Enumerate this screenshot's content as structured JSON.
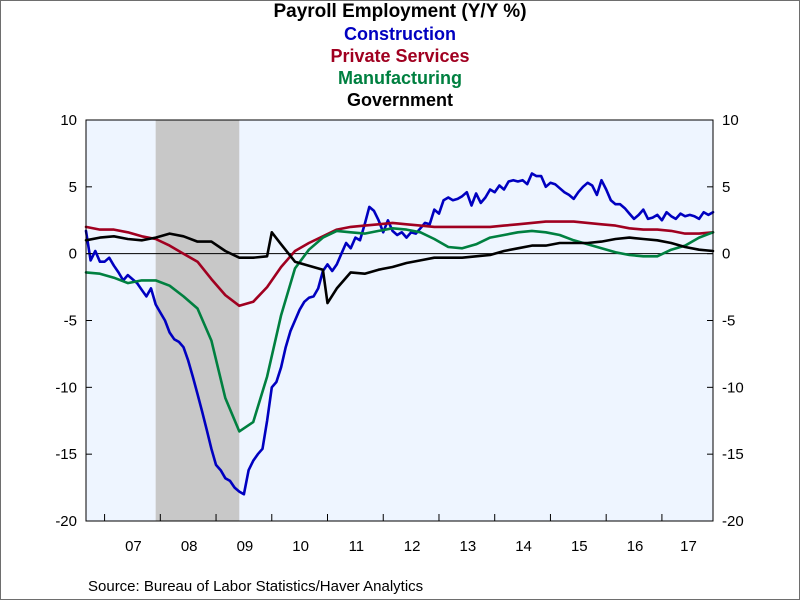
{
  "chart_data": {
    "type": "line",
    "title": "Payroll Employment (Y/Y %)",
    "source": "Source:  Bureau of Labor Statistics/Haver Analytics",
    "ylim": [
      -20,
      10
    ],
    "y_ticks": [
      10,
      5,
      0,
      -5,
      -10,
      -15,
      -20
    ],
    "x_range": [
      "2006-09",
      "2017-12"
    ],
    "x_tick_labels": [
      "07",
      "08",
      "09",
      "10",
      "11",
      "12",
      "13",
      "14",
      "15",
      "16",
      "17"
    ],
    "zero_line": true,
    "recession_shading": {
      "start": "2007-12",
      "end": "2009-06",
      "color": "#c8c8c8"
    },
    "plot_background": "#eef5ff",
    "series": [
      {
        "name": "Construction",
        "color": "#0000c0",
        "points": [
          [
            "2006-09",
            1.7
          ],
          [
            "2006-10",
            -0.5
          ],
          [
            "2006-11",
            0.2
          ],
          [
            "2006-12",
            -0.6
          ],
          [
            "2007-01",
            -0.6
          ],
          [
            "2007-02",
            -0.3
          ],
          [
            "2007-03",
            -0.9
          ],
          [
            "2007-04",
            -1.4
          ],
          [
            "2007-05",
            -2.0
          ],
          [
            "2007-06",
            -1.6
          ],
          [
            "2007-07",
            -1.9
          ],
          [
            "2007-08",
            -2.2
          ],
          [
            "2007-09",
            -2.7
          ],
          [
            "2007-10",
            -3.2
          ],
          [
            "2007-11",
            -2.6
          ],
          [
            "2007-12",
            -3.8
          ],
          [
            "2008-01",
            -4.4
          ],
          [
            "2008-02",
            -5.0
          ],
          [
            "2008-03",
            -5.9
          ],
          [
            "2008-04",
            -6.4
          ],
          [
            "2008-05",
            -6.6
          ],
          [
            "2008-06",
            -7.0
          ],
          [
            "2008-07",
            -8.0
          ],
          [
            "2008-08",
            -9.2
          ],
          [
            "2008-09",
            -10.5
          ],
          [
            "2008-10",
            -11.8
          ],
          [
            "2008-11",
            -13.2
          ],
          [
            "2008-12",
            -14.6
          ],
          [
            "2009-01",
            -15.8
          ],
          [
            "2009-02",
            -16.2
          ],
          [
            "2009-03",
            -16.8
          ],
          [
            "2009-04",
            -17.0
          ],
          [
            "2009-05",
            -17.5
          ],
          [
            "2009-06",
            -17.8
          ],
          [
            "2009-07",
            -18.0
          ],
          [
            "2009-08",
            -16.2
          ],
          [
            "2009-09",
            -15.5
          ],
          [
            "2009-10",
            -15.0
          ],
          [
            "2009-11",
            -14.6
          ],
          [
            "2009-12",
            -12.5
          ],
          [
            "2010-01",
            -10.0
          ],
          [
            "2010-02",
            -9.6
          ],
          [
            "2010-03",
            -8.5
          ],
          [
            "2010-04",
            -7.0
          ],
          [
            "2010-05",
            -5.8
          ],
          [
            "2010-06",
            -5.0
          ],
          [
            "2010-07",
            -4.2
          ],
          [
            "2010-08",
            -3.6
          ],
          [
            "2010-09",
            -3.3
          ],
          [
            "2010-10",
            -3.2
          ],
          [
            "2010-11",
            -2.6
          ],
          [
            "2010-12",
            -1.3
          ],
          [
            "2011-01",
            -0.8
          ],
          [
            "2011-02",
            -1.3
          ],
          [
            "2011-03",
            -0.8
          ],
          [
            "2011-04",
            0.0
          ],
          [
            "2011-05",
            0.8
          ],
          [
            "2011-06",
            0.4
          ],
          [
            "2011-07",
            1.2
          ],
          [
            "2011-08",
            1.0
          ],
          [
            "2011-09",
            2.2
          ],
          [
            "2011-10",
            3.5
          ],
          [
            "2011-11",
            3.2
          ],
          [
            "2011-12",
            2.5
          ],
          [
            "2012-01",
            1.6
          ],
          [
            "2012-02",
            2.5
          ],
          [
            "2012-03",
            1.7
          ],
          [
            "2012-04",
            1.4
          ],
          [
            "2012-05",
            1.6
          ],
          [
            "2012-06",
            1.2
          ],
          [
            "2012-07",
            1.6
          ],
          [
            "2012-08",
            1.5
          ],
          [
            "2012-09",
            1.9
          ],
          [
            "2012-10",
            2.3
          ],
          [
            "2012-11",
            2.2
          ],
          [
            "2012-12",
            3.3
          ],
          [
            "2013-01",
            3.0
          ],
          [
            "2013-02",
            4.0
          ],
          [
            "2013-03",
            4.2
          ],
          [
            "2013-04",
            4.0
          ],
          [
            "2013-05",
            4.1
          ],
          [
            "2013-06",
            4.3
          ],
          [
            "2013-07",
            4.6
          ],
          [
            "2013-08",
            3.6
          ],
          [
            "2013-09",
            4.5
          ],
          [
            "2013-10",
            3.8
          ],
          [
            "2013-11",
            4.2
          ],
          [
            "2013-12",
            4.8
          ],
          [
            "2014-01",
            4.6
          ],
          [
            "2014-02",
            5.1
          ],
          [
            "2014-03",
            4.8
          ],
          [
            "2014-04",
            5.4
          ],
          [
            "2014-05",
            5.5
          ],
          [
            "2014-06",
            5.4
          ],
          [
            "2014-07",
            5.5
          ],
          [
            "2014-08",
            5.2
          ],
          [
            "2014-09",
            6.0
          ],
          [
            "2014-10",
            5.8
          ],
          [
            "2014-11",
            5.8
          ],
          [
            "2014-12",
            5.0
          ],
          [
            "2015-01",
            5.3
          ],
          [
            "2015-02",
            5.2
          ],
          [
            "2015-03",
            4.9
          ],
          [
            "2015-04",
            4.6
          ],
          [
            "2015-05",
            4.4
          ],
          [
            "2015-06",
            4.1
          ],
          [
            "2015-07",
            4.6
          ],
          [
            "2015-08",
            5.0
          ],
          [
            "2015-09",
            5.3
          ],
          [
            "2015-10",
            5.1
          ],
          [
            "2015-11",
            4.4
          ],
          [
            "2015-12",
            5.5
          ],
          [
            "2016-01",
            4.8
          ],
          [
            "2016-02",
            4.0
          ],
          [
            "2016-03",
            3.7
          ],
          [
            "2016-04",
            3.7
          ],
          [
            "2016-05",
            3.4
          ],
          [
            "2016-06",
            3.0
          ],
          [
            "2016-07",
            2.6
          ],
          [
            "2016-08",
            2.9
          ],
          [
            "2016-09",
            3.3
          ],
          [
            "2016-10",
            2.6
          ],
          [
            "2016-11",
            2.7
          ],
          [
            "2016-12",
            2.9
          ],
          [
            "2017-01",
            2.5
          ],
          [
            "2017-02",
            3.1
          ],
          [
            "2017-03",
            2.8
          ],
          [
            "2017-04",
            2.6
          ],
          [
            "2017-05",
            3.0
          ],
          [
            "2017-06",
            2.8
          ],
          [
            "2017-07",
            2.9
          ],
          [
            "2017-08",
            2.8
          ],
          [
            "2017-09",
            2.6
          ],
          [
            "2017-10",
            3.1
          ],
          [
            "2017-11",
            2.9
          ],
          [
            "2017-12",
            3.1
          ]
        ]
      },
      {
        "name": "Private Services",
        "color": "#a00020",
        "points": [
          [
            "2006-09",
            2.0
          ],
          [
            "2006-12",
            1.8
          ],
          [
            "2007-03",
            1.8
          ],
          [
            "2007-06",
            1.6
          ],
          [
            "2007-09",
            1.3
          ],
          [
            "2007-12",
            1.1
          ],
          [
            "2008-03",
            0.6
          ],
          [
            "2008-06",
            0.0
          ],
          [
            "2008-09",
            -0.6
          ],
          [
            "2008-12",
            -1.9
          ],
          [
            "2009-03",
            -3.1
          ],
          [
            "2009-06",
            -3.9
          ],
          [
            "2009-09",
            -3.6
          ],
          [
            "2009-12",
            -2.5
          ],
          [
            "2010-03",
            -1.0
          ],
          [
            "2010-06",
            0.2
          ],
          [
            "2010-09",
            0.8
          ],
          [
            "2010-12",
            1.3
          ],
          [
            "2011-03",
            1.8
          ],
          [
            "2011-06",
            2.0
          ],
          [
            "2011-09",
            2.1
          ],
          [
            "2011-12",
            2.2
          ],
          [
            "2012-03",
            2.3
          ],
          [
            "2012-06",
            2.2
          ],
          [
            "2012-09",
            2.1
          ],
          [
            "2012-12",
            2.0
          ],
          [
            "2013-03",
            2.0
          ],
          [
            "2013-06",
            2.0
          ],
          [
            "2013-09",
            2.0
          ],
          [
            "2013-12",
            2.0
          ],
          [
            "2014-03",
            2.1
          ],
          [
            "2014-06",
            2.2
          ],
          [
            "2014-09",
            2.3
          ],
          [
            "2014-12",
            2.4
          ],
          [
            "2015-03",
            2.4
          ],
          [
            "2015-06",
            2.4
          ],
          [
            "2015-09",
            2.3
          ],
          [
            "2015-12",
            2.2
          ],
          [
            "2016-03",
            2.1
          ],
          [
            "2016-06",
            1.9
          ],
          [
            "2016-09",
            1.8
          ],
          [
            "2016-12",
            1.8
          ],
          [
            "2017-03",
            1.7
          ],
          [
            "2017-06",
            1.5
          ],
          [
            "2017-09",
            1.5
          ],
          [
            "2017-12",
            1.6
          ]
        ]
      },
      {
        "name": "Manufacturing",
        "color": "#008040",
        "points": [
          [
            "2006-09",
            -1.4
          ],
          [
            "2006-12",
            -1.5
          ],
          [
            "2007-03",
            -1.8
          ],
          [
            "2007-06",
            -2.2
          ],
          [
            "2007-09",
            -2.0
          ],
          [
            "2007-12",
            -2.0
          ],
          [
            "2008-03",
            -2.4
          ],
          [
            "2008-06",
            -3.2
          ],
          [
            "2008-09",
            -4.1
          ],
          [
            "2008-12",
            -6.5
          ],
          [
            "2009-03",
            -10.8
          ],
          [
            "2009-06",
            -13.3
          ],
          [
            "2009-09",
            -12.6
          ],
          [
            "2009-12",
            -9.2
          ],
          [
            "2010-03",
            -4.6
          ],
          [
            "2010-06",
            -1.1
          ],
          [
            "2010-09",
            0.3
          ],
          [
            "2010-12",
            1.2
          ],
          [
            "2011-03",
            1.7
          ],
          [
            "2011-06",
            1.6
          ],
          [
            "2011-09",
            1.5
          ],
          [
            "2011-12",
            1.7
          ],
          [
            "2012-03",
            1.9
          ],
          [
            "2012-06",
            1.8
          ],
          [
            "2012-09",
            1.6
          ],
          [
            "2012-12",
            1.1
          ],
          [
            "2013-03",
            0.5
          ],
          [
            "2013-06",
            0.4
          ],
          [
            "2013-09",
            0.7
          ],
          [
            "2013-12",
            1.2
          ],
          [
            "2014-03",
            1.4
          ],
          [
            "2014-06",
            1.6
          ],
          [
            "2014-09",
            1.7
          ],
          [
            "2014-12",
            1.6
          ],
          [
            "2015-03",
            1.4
          ],
          [
            "2015-06",
            1.0
          ],
          [
            "2015-09",
            0.7
          ],
          [
            "2015-12",
            0.4
          ],
          [
            "2016-03",
            0.1
          ],
          [
            "2016-06",
            -0.1
          ],
          [
            "2016-09",
            -0.2
          ],
          [
            "2016-12",
            -0.2
          ],
          [
            "2017-03",
            0.3
          ],
          [
            "2017-06",
            0.6
          ],
          [
            "2017-09",
            1.2
          ],
          [
            "2017-12",
            1.6
          ]
        ]
      },
      {
        "name": "Government",
        "color": "#000000",
        "points": [
          [
            "2006-09",
            1.0
          ],
          [
            "2006-12",
            1.2
          ],
          [
            "2007-03",
            1.3
          ],
          [
            "2007-06",
            1.1
          ],
          [
            "2007-09",
            1.0
          ],
          [
            "2007-12",
            1.2
          ],
          [
            "2008-03",
            1.5
          ],
          [
            "2008-06",
            1.3
          ],
          [
            "2008-09",
            0.9
          ],
          [
            "2008-12",
            0.9
          ],
          [
            "2009-03",
            0.2
          ],
          [
            "2009-06",
            -0.3
          ],
          [
            "2009-09",
            -0.3
          ],
          [
            "2009-12",
            -0.2
          ],
          [
            "2010-01",
            1.6
          ],
          [
            "2010-03",
            0.7
          ],
          [
            "2010-06",
            -0.6
          ],
          [
            "2010-09",
            -0.9
          ],
          [
            "2010-12",
            -1.2
          ],
          [
            "2011-01",
            -3.7
          ],
          [
            "2011-03",
            -2.6
          ],
          [
            "2011-06",
            -1.4
          ],
          [
            "2011-09",
            -1.5
          ],
          [
            "2011-12",
            -1.2
          ],
          [
            "2012-03",
            -1.0
          ],
          [
            "2012-06",
            -0.7
          ],
          [
            "2012-09",
            -0.5
          ],
          [
            "2012-12",
            -0.3
          ],
          [
            "2013-03",
            -0.3
          ],
          [
            "2013-06",
            -0.3
          ],
          [
            "2013-09",
            -0.2
          ],
          [
            "2013-12",
            -0.1
          ],
          [
            "2014-03",
            0.2
          ],
          [
            "2014-06",
            0.4
          ],
          [
            "2014-09",
            0.6
          ],
          [
            "2014-12",
            0.6
          ],
          [
            "2015-03",
            0.8
          ],
          [
            "2015-06",
            0.8
          ],
          [
            "2015-09",
            0.8
          ],
          [
            "2015-12",
            0.9
          ],
          [
            "2016-03",
            1.1
          ],
          [
            "2016-06",
            1.2
          ],
          [
            "2016-09",
            1.1
          ],
          [
            "2016-12",
            1.0
          ],
          [
            "2017-03",
            0.8
          ],
          [
            "2017-06",
            0.5
          ],
          [
            "2017-09",
            0.3
          ],
          [
            "2017-12",
            0.2
          ]
        ]
      }
    ]
  }
}
